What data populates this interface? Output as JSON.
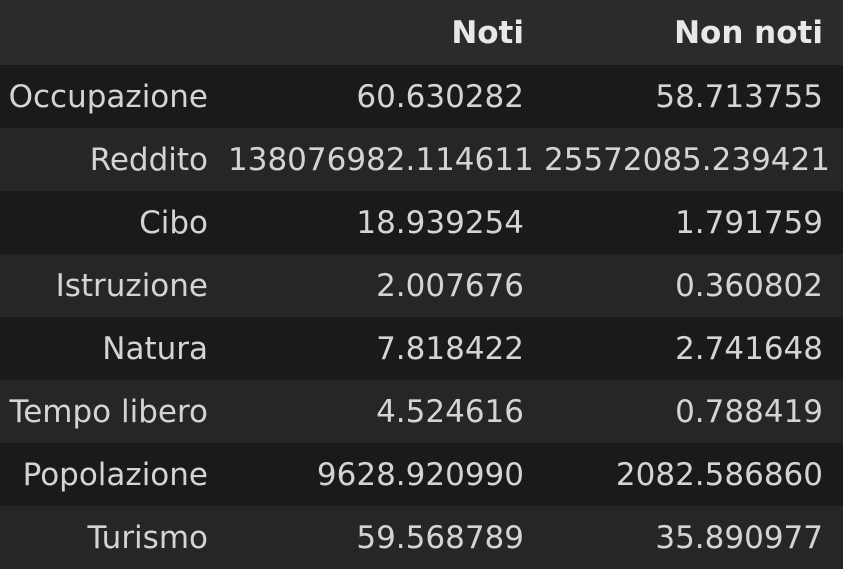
{
  "table": {
    "columns": [
      "",
      "Noti",
      "Non noti"
    ],
    "rows": [
      {
        "label": "Occupazione",
        "noti": "60.630282",
        "non_noti": "58.713755"
      },
      {
        "label": "Reddito",
        "noti": "138076982.114611",
        "non_noti": "25572085.239421"
      },
      {
        "label": "Cibo",
        "noti": "18.939254",
        "non_noti": "1.791759"
      },
      {
        "label": "Istruzione",
        "noti": "2.007676",
        "non_noti": "0.360802"
      },
      {
        "label": "Natura",
        "noti": "7.818422",
        "non_noti": "2.741648"
      },
      {
        "label": "Tempo libero",
        "noti": "4.524616",
        "non_noti": "0.788419"
      },
      {
        "label": "Popolazione",
        "noti": "9628.920990",
        "non_noti": "2082.586860"
      },
      {
        "label": "Turismo",
        "noti": "59.568789",
        "non_noti": "35.890977"
      }
    ]
  }
}
